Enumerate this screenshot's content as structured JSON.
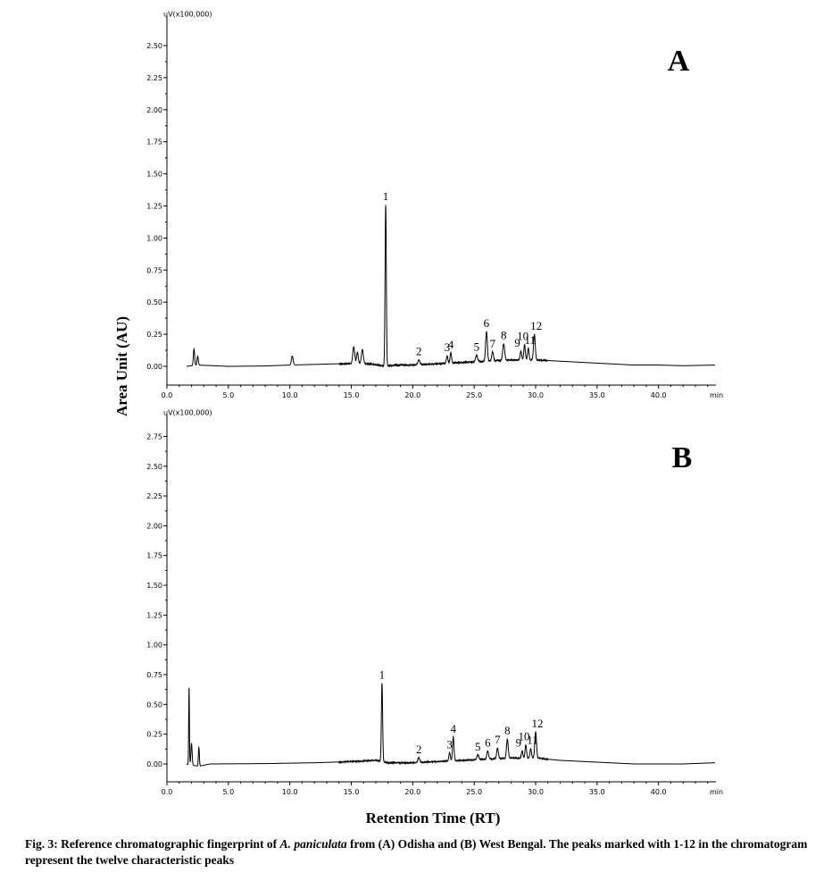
{
  "ylabel": "Area Unit (AU)",
  "xlabel": "Retention Time (RT)",
  "caption": {
    "prefix": "Fig. 3: Reference chromatographic fingerprint of ",
    "species": "A. paniculata",
    "suffix": " from (A) Odisha and (B) West Bengal. The peaks marked with 1-12 in the chromatogram represent the twelve characteristic peaks"
  },
  "chart_data": [
    {
      "type": "line",
      "panel": "A",
      "y_unit": "uV(x100,000)",
      "x_unit": "min",
      "xlim": [
        0,
        44.6
      ],
      "ylim": [
        -0.1,
        2.62
      ],
      "x_ticks": [
        "0.0",
        "5.0",
        "10.0",
        "15.0",
        "20.0",
        "25.0",
        "30.0",
        "35.0",
        "40.0"
      ],
      "y_ticks": [
        "0.00",
        "0.25",
        "0.50",
        "0.75",
        "1.00",
        "1.25",
        "1.50",
        "1.75",
        "2.00",
        "2.25",
        "2.50"
      ],
      "baseline": [
        [
          0.0,
          0.0
        ],
        [
          1.6,
          0.0
        ],
        [
          2.5,
          0.01
        ],
        [
          5.0,
          0.0
        ],
        [
          8.0,
          0.003
        ],
        [
          10.0,
          0.01
        ],
        [
          14.0,
          0.02
        ],
        [
          16.5,
          0.02
        ],
        [
          17.8,
          0.0
        ],
        [
          18.5,
          0.01
        ],
        [
          20.0,
          0.01
        ],
        [
          22.0,
          0.02
        ],
        [
          24.0,
          0.03
        ],
        [
          26.0,
          0.04
        ],
        [
          28.0,
          0.05
        ],
        [
          30.0,
          0.05
        ],
        [
          32.0,
          0.04
        ],
        [
          34.0,
          0.03
        ],
        [
          36.0,
          0.02
        ],
        [
          38.0,
          0.01
        ],
        [
          40.0,
          0.01
        ],
        [
          42.0,
          0.005
        ],
        [
          44.6,
          0.01
        ]
      ],
      "peaks": [
        {
          "x": 2.2,
          "y": 0.13,
          "w": 0.05
        },
        {
          "x": 2.5,
          "y": 0.07,
          "w": 0.05
        },
        {
          "x": 10.2,
          "y": 0.07,
          "w": 0.07
        },
        {
          "x": 15.2,
          "y": 0.13,
          "w": 0.08
        },
        {
          "x": 15.5,
          "y": 0.09,
          "w": 0.07
        },
        {
          "x": 15.9,
          "y": 0.11,
          "w": 0.08
        },
        {
          "x": 17.8,
          "y": 1.26,
          "w": 0.05,
          "label": "1"
        },
        {
          "x": 20.5,
          "y": 0.04,
          "w": 0.08,
          "label": "2"
        },
        {
          "x": 22.8,
          "y": 0.06,
          "w": 0.06,
          "label": "3"
        },
        {
          "x": 23.1,
          "y": 0.08,
          "w": 0.06,
          "label": "4"
        },
        {
          "x": 25.2,
          "y": 0.05,
          "w": 0.08,
          "label": "5"
        },
        {
          "x": 26.0,
          "y": 0.23,
          "w": 0.07,
          "label": "6"
        },
        {
          "x": 26.5,
          "y": 0.07,
          "w": 0.07,
          "label": "7"
        },
        {
          "x": 27.4,
          "y": 0.13,
          "w": 0.08,
          "label": "8"
        },
        {
          "x": 28.8,
          "y": 0.07,
          "w": 0.06,
          "label": "9"
        },
        {
          "x": 29.1,
          "y": 0.12,
          "w": 0.06,
          "label": "10"
        },
        {
          "x": 29.4,
          "y": 0.09,
          "w": 0.06,
          "label": "11"
        },
        {
          "x": 29.9,
          "y": 0.2,
          "w": 0.07,
          "label": "12"
        }
      ]
    },
    {
      "type": "line",
      "panel": "B",
      "y_unit": "uV(x100,000)",
      "x_unit": "min",
      "xlim": [
        0,
        44.6
      ],
      "ylim": [
        -0.1,
        2.85
      ],
      "x_ticks": [
        "0.0",
        "5.0",
        "10.0",
        "15.0",
        "20.0",
        "25.0",
        "30.0",
        "35.0",
        "40.0"
      ],
      "y_ticks": [
        "0.00",
        "0.25",
        "0.50",
        "0.75",
        "1.00",
        "1.25",
        "1.50",
        "1.75",
        "2.00",
        "2.25",
        "2.50",
        "2.75"
      ],
      "baseline": [
        [
          0.0,
          0.0
        ],
        [
          1.5,
          0.0
        ],
        [
          2.6,
          -0.02
        ],
        [
          3.5,
          0.0
        ],
        [
          8.0,
          0.003
        ],
        [
          12.0,
          0.01
        ],
        [
          15.0,
          0.02
        ],
        [
          17.0,
          0.03
        ],
        [
          18.0,
          0.01
        ],
        [
          20.0,
          0.01
        ],
        [
          22.0,
          0.02
        ],
        [
          24.0,
          0.03
        ],
        [
          26.0,
          0.04
        ],
        [
          28.0,
          0.05
        ],
        [
          30.0,
          0.05
        ],
        [
          32.0,
          0.03
        ],
        [
          34.0,
          0.02
        ],
        [
          36.0,
          0.01
        ],
        [
          38.0,
          0.0
        ],
        [
          40.0,
          0.0
        ],
        [
          42.0,
          0.0
        ],
        [
          44.6,
          0.01
        ]
      ],
      "peaks": [
        {
          "x": 1.8,
          "y": 0.65,
          "w": 0.03
        },
        {
          "x": 2.0,
          "y": 0.18,
          "w": 0.05
        },
        {
          "x": 2.6,
          "y": 0.16,
          "w": 0.04
        },
        {
          "x": 17.5,
          "y": 0.66,
          "w": 0.05,
          "label": "1"
        },
        {
          "x": 20.5,
          "y": 0.04,
          "w": 0.08,
          "label": "2"
        },
        {
          "x": 23.0,
          "y": 0.07,
          "w": 0.06,
          "label": "3"
        },
        {
          "x": 23.3,
          "y": 0.2,
          "w": 0.06,
          "label": "4"
        },
        {
          "x": 25.3,
          "y": 0.04,
          "w": 0.08,
          "label": "5"
        },
        {
          "x": 26.1,
          "y": 0.07,
          "w": 0.07,
          "label": "6"
        },
        {
          "x": 26.9,
          "y": 0.09,
          "w": 0.07,
          "label": "7"
        },
        {
          "x": 27.7,
          "y": 0.16,
          "w": 0.07,
          "label": "8"
        },
        {
          "x": 28.9,
          "y": 0.06,
          "w": 0.06,
          "label": "9"
        },
        {
          "x": 29.2,
          "y": 0.11,
          "w": 0.06,
          "label": "10"
        },
        {
          "x": 29.6,
          "y": 0.08,
          "w": 0.06,
          "label": "11"
        },
        {
          "x": 30.0,
          "y": 0.22,
          "w": 0.07,
          "label": "12"
        }
      ]
    }
  ]
}
